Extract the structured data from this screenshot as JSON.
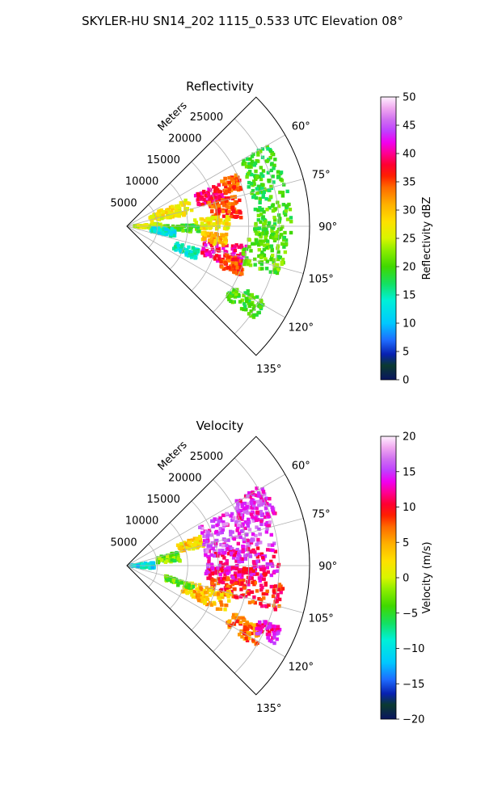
{
  "figure_title": "SKYLER-HU  SN14_202  1115_0.533 UTC Elevation 08°",
  "chart_data": [
    {
      "type": "heatmap",
      "projection": "polar-sector",
      "title": "Reflectivity",
      "range_label": "Meters",
      "range_ticks": [
        "5000",
        "10000",
        "15000",
        "20000",
        "25000"
      ],
      "range_tick_values": [
        5000,
        10000,
        15000,
        20000,
        25000
      ],
      "range_max": 30000,
      "azimuth_range": [
        45,
        135
      ],
      "azimuth_ticks": [
        "60°",
        "75°",
        "90°",
        "105°",
        "120°",
        "135°"
      ],
      "azimuth_tick_values": [
        60,
        75,
        90,
        105,
        120,
        135
      ],
      "grid": true,
      "colorbar": {
        "label": "Reflectivity dBZ",
        "min": 0,
        "max": 50,
        "ticks": [
          "0",
          "5",
          "10",
          "15",
          "20",
          "25",
          "30",
          "35",
          "40",
          "45",
          "50"
        ],
        "tick_values": [
          0,
          5,
          10,
          15,
          20,
          25,
          30,
          35,
          40,
          45,
          50
        ],
        "stops": [
          [
            0.0,
            "#0a1560"
          ],
          [
            0.05,
            "#0a3a30"
          ],
          [
            0.09,
            "#0820b0"
          ],
          [
            0.14,
            "#1e6cff"
          ],
          [
            0.2,
            "#00c8ff"
          ],
          [
            0.28,
            "#00f0d8"
          ],
          [
            0.34,
            "#14e060"
          ],
          [
            0.4,
            "#40d800"
          ],
          [
            0.46,
            "#90ee00"
          ],
          [
            0.5,
            "#d8f500"
          ],
          [
            0.56,
            "#ffe000"
          ],
          [
            0.62,
            "#ffb000"
          ],
          [
            0.68,
            "#ff6a00"
          ],
          [
            0.72,
            "#ff2000"
          ],
          [
            0.76,
            "#ff0030"
          ],
          [
            0.8,
            "#ff0090"
          ],
          [
            0.84,
            "#f000f0"
          ],
          [
            0.88,
            "#c040ff"
          ],
          [
            0.92,
            "#d070f0"
          ],
          [
            0.96,
            "#f0a8f0"
          ],
          [
            1.0,
            "#fff0ff"
          ]
        ]
      },
      "echo_cells": [
        {
          "az": 72,
          "r": 7500,
          "da": 14,
          "dr": 7000,
          "v": 27
        },
        {
          "az": 70,
          "r": 14500,
          "da": 9,
          "dr": 4500,
          "v": 39
        },
        {
          "az": 68,
          "r": 18500,
          "da": 8,
          "dr": 3000,
          "v": 34
        },
        {
          "az": 80,
          "r": 16500,
          "da": 12,
          "dr": 5000,
          "v": 35
        },
        {
          "az": 88,
          "r": 14000,
          "da": 8,
          "dr": 6000,
          "v": 27
        },
        {
          "az": 92,
          "r": 9000,
          "da": 6,
          "dr": 6000,
          "v": 20
        },
        {
          "az": 90,
          "r": 3500,
          "da": 10,
          "dr": 4500,
          "v": 25
        },
        {
          "az": 105,
          "r": 16500,
          "da": 12,
          "dr": 7000,
          "v": 40
        },
        {
          "az": 110,
          "r": 18500,
          "da": 8,
          "dr": 4000,
          "v": 35
        },
        {
          "az": 98,
          "r": 14500,
          "da": 7,
          "dr": 4000,
          "v": 30
        },
        {
          "az": 112,
          "r": 10500,
          "da": 8,
          "dr": 4000,
          "v": 14
        },
        {
          "az": 100,
          "r": 23000,
          "da": 16,
          "dr": 7000,
          "v": 21
        },
        {
          "az": 122,
          "r": 23000,
          "da": 8,
          "dr": 6000,
          "v": 20
        },
        {
          "az": 70,
          "r": 24000,
          "da": 20,
          "dr": 6000,
          "v": 19
        },
        {
          "az": 88,
          "r": 24000,
          "da": 14,
          "dr": 6000,
          "v": 20
        },
        {
          "az": 98,
          "r": 6000,
          "da": 10,
          "dr": 4000,
          "v": 13
        }
      ]
    },
    {
      "type": "heatmap",
      "projection": "polar-sector",
      "title": "Velocity",
      "range_label": "Meters",
      "range_ticks": [
        "5000",
        "10000",
        "15000",
        "20000",
        "25000"
      ],
      "range_tick_values": [
        5000,
        10000,
        15000,
        20000,
        25000
      ],
      "range_max": 30000,
      "azimuth_range": [
        45,
        135
      ],
      "azimuth_ticks": [
        "60°",
        "75°",
        "90°",
        "105°",
        "120°",
        "135°"
      ],
      "azimuth_tick_values": [
        60,
        75,
        90,
        105,
        120,
        135
      ],
      "grid": true,
      "colorbar": {
        "label": "Velocity (m/s)",
        "min": -20,
        "max": 20,
        "ticks": [
          "−20",
          "−15",
          "−10",
          "−5",
          "0",
          "5",
          "10",
          "15",
          "20"
        ],
        "tick_values": [
          -20,
          -15,
          -10,
          -5,
          0,
          5,
          10,
          15,
          20
        ],
        "stops": [
          [
            0.0,
            "#0a1560"
          ],
          [
            0.05,
            "#0a3a30"
          ],
          [
            0.09,
            "#0820b0"
          ],
          [
            0.14,
            "#1e6cff"
          ],
          [
            0.2,
            "#00c8ff"
          ],
          [
            0.28,
            "#00f0d8"
          ],
          [
            0.34,
            "#14e060"
          ],
          [
            0.4,
            "#40d800"
          ],
          [
            0.46,
            "#90ee00"
          ],
          [
            0.5,
            "#d8f500"
          ],
          [
            0.56,
            "#ffe000"
          ],
          [
            0.62,
            "#ffb000"
          ],
          [
            0.68,
            "#ff6a00"
          ],
          [
            0.72,
            "#ff2000"
          ],
          [
            0.76,
            "#ff0030"
          ],
          [
            0.8,
            "#ff0090"
          ],
          [
            0.84,
            "#f000f0"
          ],
          [
            0.88,
            "#c040ff"
          ],
          [
            0.92,
            "#d070f0"
          ],
          [
            0.96,
            "#f0a8f0"
          ],
          [
            1.0,
            "#fff0ff"
          ]
        ]
      },
      "echo_cells": [
        {
          "az": 90,
          "r": 2500,
          "da": 14,
          "dr": 4000,
          "v": -10
        },
        {
          "az": 80,
          "r": 7000,
          "da": 10,
          "dr": 4000,
          "v": -3
        },
        {
          "az": 72,
          "r": 11000,
          "da": 8,
          "dr": 4000,
          "v": 3
        },
        {
          "az": 72,
          "r": 19000,
          "da": 20,
          "dr": 12000,
          "v": 15
        },
        {
          "az": 88,
          "r": 19000,
          "da": 12,
          "dr": 12000,
          "v": 13
        },
        {
          "az": 95,
          "r": 18000,
          "da": 8,
          "dr": 10000,
          "v": 12
        },
        {
          "az": 102,
          "r": 20000,
          "da": 10,
          "dr": 12000,
          "v": 9
        },
        {
          "az": 110,
          "r": 14000,
          "da": 12,
          "dr": 8000,
          "v": 4
        },
        {
          "az": 118,
          "r": 22000,
          "da": 8,
          "dr": 6000,
          "v": 7
        },
        {
          "az": 115,
          "r": 25500,
          "da": 6,
          "dr": 4000,
          "v": 13
        },
        {
          "az": 108,
          "r": 9000,
          "da": 6,
          "dr": 5000,
          "v": -3
        },
        {
          "az": 65,
          "r": 23000,
          "da": 12,
          "dr": 6000,
          "v": 14
        }
      ]
    }
  ]
}
